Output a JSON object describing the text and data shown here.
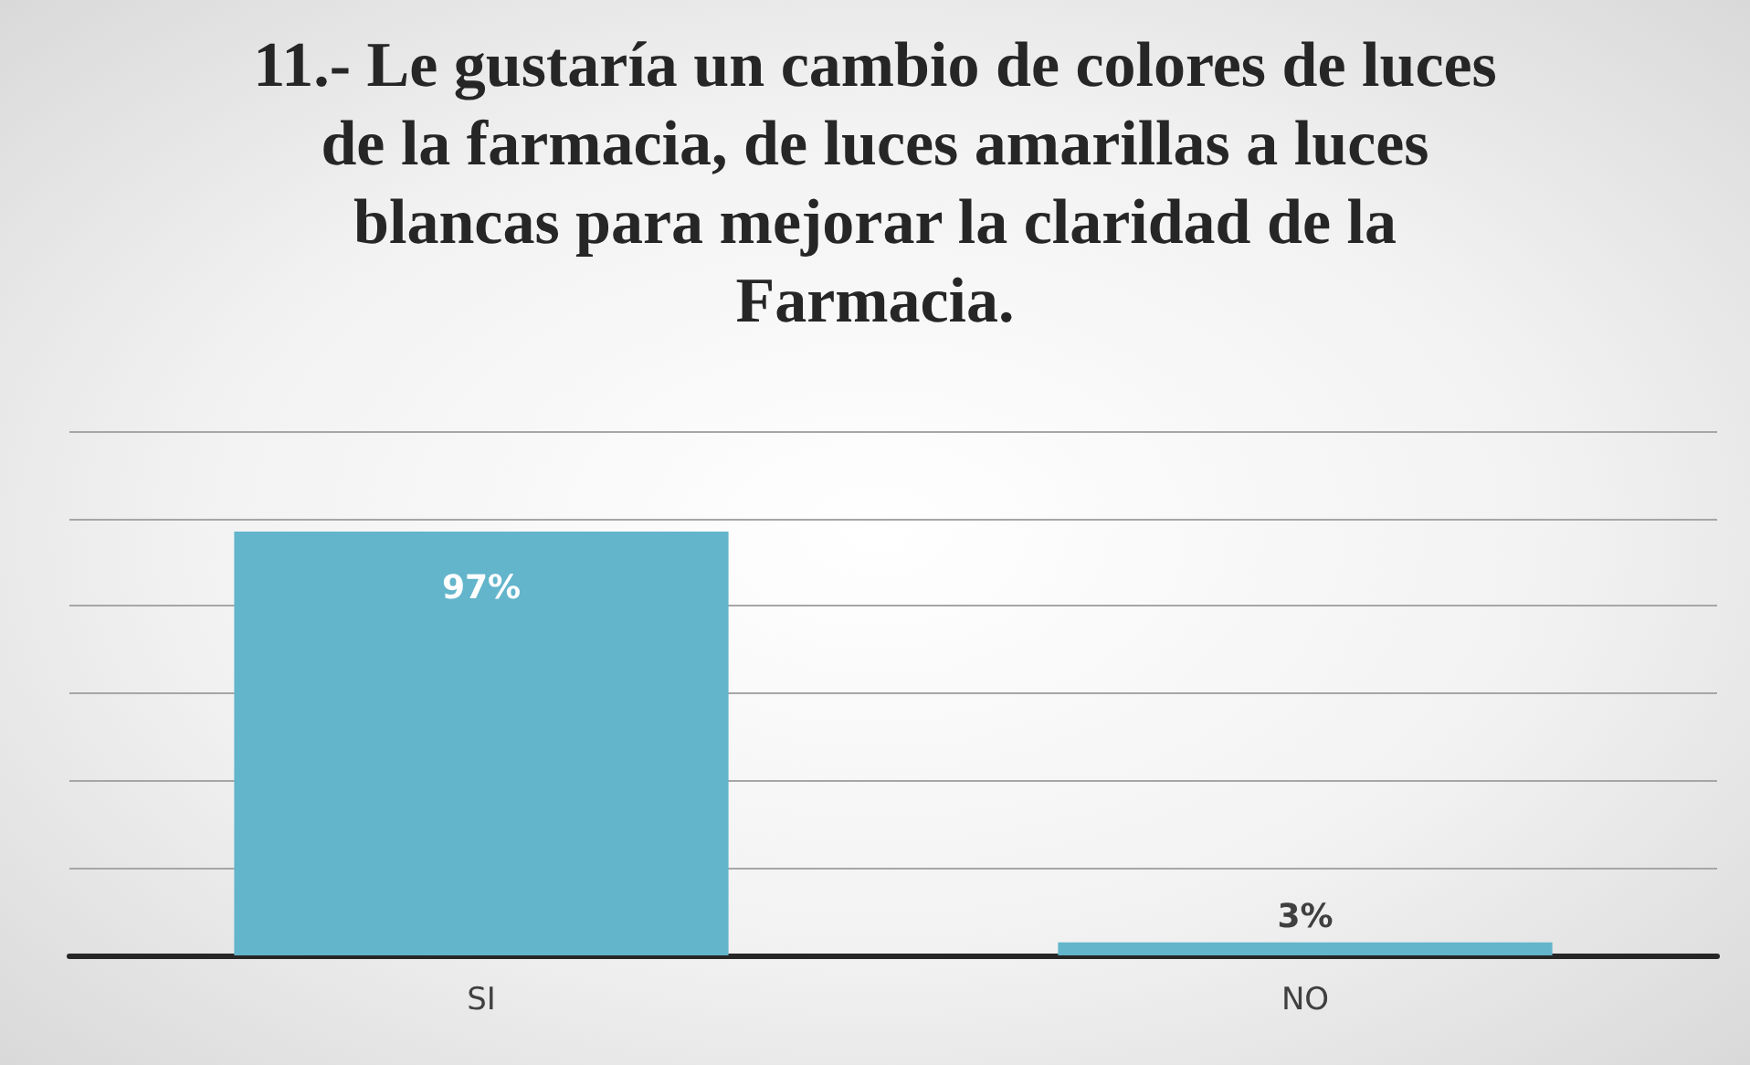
{
  "chart_data": {
    "type": "bar",
    "title": "11.- Le gustaría un cambio de colores de luces de la farmacia, de luces amarillas a luces blancas para mejorar la claridad de la Farmacia.",
    "categories": [
      "SI",
      "NO"
    ],
    "values": [
      97,
      3
    ],
    "value_labels": [
      "97%",
      "3%"
    ],
    "color": "#62b5cb",
    "ylim": [
      0,
      120
    ],
    "yticks": [
      {
        "value": 0,
        "label": null
      },
      {
        "value": 20,
        "label": null
      },
      {
        "value": 40,
        "label": null
      },
      {
        "value": 60,
        "label": null
      },
      {
        "value": 80,
        "label": null
      },
      {
        "value": 100,
        "label": null
      },
      {
        "value": 120,
        "label": null
      }
    ],
    "tick_labels": "x",
    "grid": "y"
  }
}
